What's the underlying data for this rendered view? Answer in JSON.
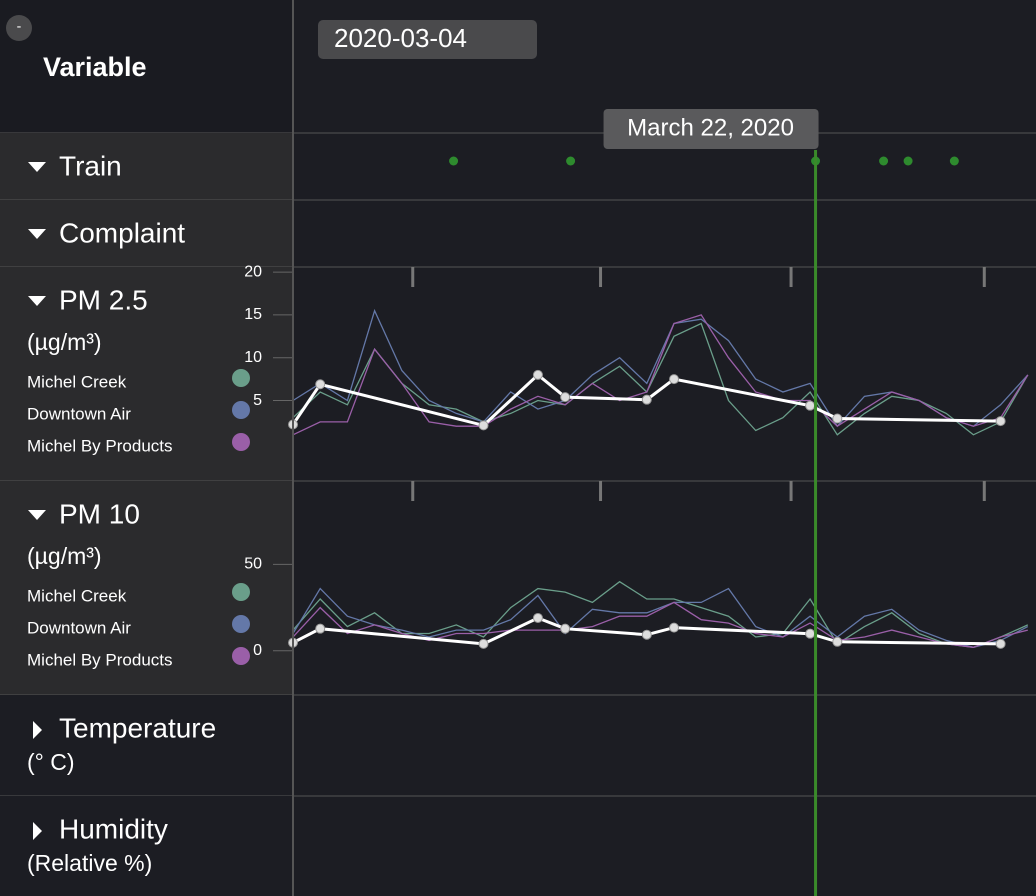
{
  "header": {
    "title": "Variable",
    "toggle": "-",
    "date": "2020-03-04",
    "hover_date": "March 22, 2020",
    "hover_x": 19.2,
    "hover_color": "#3a8a2a"
  },
  "xlim": [
    0,
    27.3
  ],
  "xticks": [
    4.4,
    11.3,
    18.3,
    25.4
  ],
  "variables": [
    {
      "name": "Train",
      "expanded": true,
      "event_color": "#2e8b2e",
      "events": [
        5.9,
        10.2,
        19.2,
        21.7,
        22.6,
        24.3
      ]
    },
    {
      "name": "Complaint",
      "expanded": true
    },
    {
      "name": "PM 2.5",
      "unit": "(µg/m³)",
      "expanded": true,
      "chart_data": {
        "type": "line",
        "x": [
          0,
          1,
          2,
          3,
          4,
          5,
          6,
          7,
          8,
          9,
          10,
          11,
          12,
          13,
          14,
          15,
          16,
          17,
          18,
          19,
          20,
          21,
          22,
          23,
          24,
          25,
          26,
          27
        ],
        "ylim": [
          -4.4,
          20.6
        ],
        "yticks": [
          5,
          10,
          15,
          20
        ],
        "series": [
          {
            "name": "Michel Creek",
            "color": "#6a9e8a",
            "values": [
              3,
              6,
              4.5,
              11,
              7,
              4.5,
              4,
              2.5,
              3.5,
              5,
              4.5,
              7,
              9,
              6,
              12.5,
              14,
              5,
              1.5,
              3,
              6,
              1,
              3.5,
              5.5,
              5,
              3.5,
              1,
              2.5,
              8
            ]
          },
          {
            "name": "Downtown Air",
            "color": "#6478a8",
            "values": [
              5,
              7,
              5,
              15.5,
              8.5,
              5,
              3.5,
              2.5,
              6,
              4,
              5,
              8,
              10,
              7,
              14,
              14.5,
              12,
              7.5,
              6,
              7,
              2,
              5.5,
              6,
              5,
              3,
              2,
              4.5,
              8
            ]
          },
          {
            "name": "Michel By Products",
            "color": "#9a5fa8",
            "values": [
              1,
              2.5,
              2.5,
              11,
              7,
              2.5,
              2,
              2,
              4,
              5.5,
              4.5,
              7,
              5,
              6,
              14,
              15,
              10,
              6,
              5,
              5,
              2,
              4,
              6,
              5,
              3,
              2,
              3,
              8
            ]
          }
        ],
        "mean": {
          "color": "#ffffff",
          "x": [
            0,
            1,
            7,
            9,
            10,
            13,
            14,
            19,
            20,
            26
          ],
          "values": [
            2.2,
            6.9,
            2.1,
            8,
            5.4,
            5.1,
            7.5,
            4.4,
            2.9,
            2.6
          ]
        }
      }
    },
    {
      "name": "PM 10",
      "unit": "(µg/m³)",
      "expanded": true,
      "chart_data": {
        "type": "line",
        "x": [
          0,
          1,
          2,
          3,
          4,
          5,
          6,
          7,
          8,
          9,
          10,
          11,
          12,
          13,
          14,
          15,
          16,
          17,
          18,
          19,
          20,
          21,
          22,
          23,
          24,
          25,
          26,
          27
        ],
        "ylim": [
          -25.6,
          98.3
        ],
        "yticks": [
          0,
          50
        ],
        "series": [
          {
            "name": "Michel Creek",
            "color": "#6a9e8a",
            "values": [
              12,
              30,
              14,
              22,
              10,
              10,
              15,
              8,
              25,
              36,
              34,
              28,
              40,
              30,
              30,
              25,
              20,
              8,
              10,
              30,
              4,
              14,
              22,
              10,
              4,
              2,
              8,
              15
            ]
          },
          {
            "name": "Downtown Air",
            "color": "#6478a8",
            "values": [
              10,
              36,
              20,
              15,
              12,
              8,
              12,
              12,
              18,
              32,
              10,
              24,
              22,
              22,
              28,
              28,
              36,
              14,
              8,
              20,
              8,
              20,
              24,
              12,
              6,
              2,
              6,
              14
            ]
          },
          {
            "name": "Michel By Products",
            "color": "#9a5fa8",
            "values": [
              8,
              25,
              10,
              15,
              10,
              6,
              10,
              10,
              12,
              12,
              12,
              14,
              20,
              20,
              28,
              18,
              16,
              10,
              8,
              16,
              6,
              8,
              12,
              8,
              4,
              2,
              8,
              12
            ]
          }
        ],
        "mean": {
          "color": "#ffffff",
          "x": [
            0,
            1,
            7,
            9,
            10,
            13,
            14,
            19,
            20,
            26
          ],
          "values": [
            4.7,
            12.8,
            4,
            19,
            12.8,
            9.3,
            13.4,
            9.9,
            5.2,
            4
          ]
        }
      }
    },
    {
      "name": "Temperature",
      "unit": "(° C)",
      "expanded": false
    },
    {
      "name": "Humidity",
      "unit": "(Relative %)",
      "expanded": false
    }
  ]
}
